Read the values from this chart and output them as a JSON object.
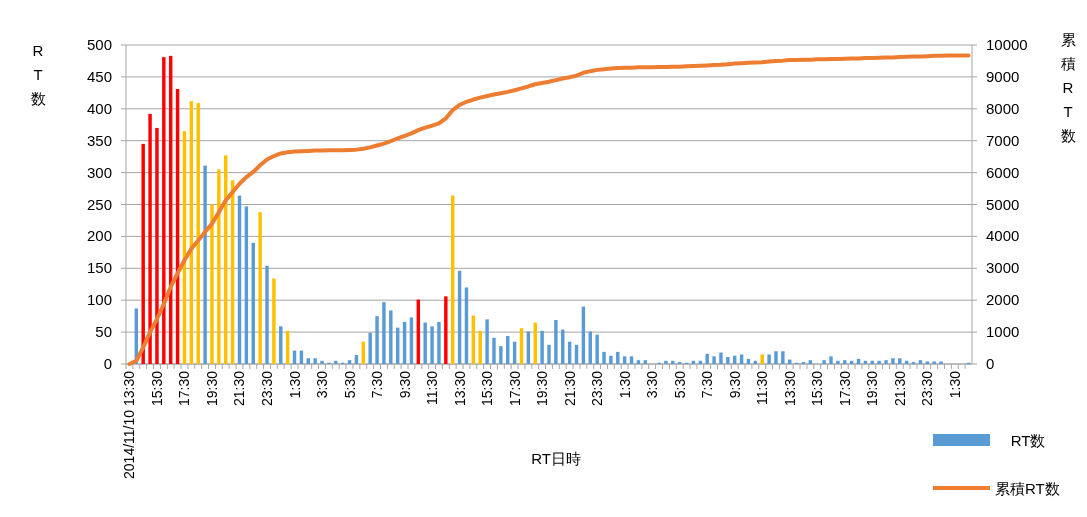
{
  "chart_data": {
    "type": "bar",
    "xlabel": "RT日時",
    "ylabel": "RT数",
    "y2label": "累積RT数",
    "categories": [
      "2014/11/10 13:30",
      null,
      null,
      null,
      "15:30",
      null,
      null,
      null,
      "17:30",
      null,
      null,
      null,
      "19:30",
      null,
      null,
      null,
      "21:30",
      null,
      null,
      null,
      "23:30",
      null,
      null,
      null,
      "1:30",
      null,
      null,
      null,
      "3:30",
      null,
      null,
      null,
      "5:30",
      null,
      null,
      null,
      "7:30",
      null,
      null,
      null,
      "9:30",
      null,
      null,
      null,
      "11:30",
      null,
      null,
      null,
      "13:30",
      null,
      null,
      null,
      "15:30",
      null,
      null,
      null,
      "17:30",
      null,
      null,
      null,
      "19:30",
      null,
      null,
      null,
      "21:30",
      null,
      null,
      null,
      "23:30",
      null,
      null,
      null,
      "1:30",
      null,
      null,
      null,
      "3:30",
      null,
      null,
      null,
      "5:30",
      null,
      null,
      null,
      "7:30",
      null,
      null,
      null,
      "9:30",
      null,
      null,
      null,
      "11:30",
      null,
      null,
      null,
      "13:30",
      null,
      null,
      null,
      "15:30",
      null,
      null,
      null,
      "17:30",
      null,
      null,
      null,
      "19:30",
      null,
      null,
      null,
      "21:30",
      null,
      null,
      null,
      "23:30",
      null,
      null,
      null,
      "1:30",
      null,
      null
    ],
    "series": [
      {
        "name": "RT数",
        "color": "#5b9bd5",
        "colors": [
          null,
          "#5b9bd5",
          "#ff0000",
          "#ff0000",
          "#ff0000",
          "#ff0000",
          "#ff0000",
          "#ff0000",
          "#ffc000",
          "#ffc000",
          "#ffc000",
          "#5b9bd5",
          "#ffc000",
          "#ffc000",
          "#ffc000",
          "#ffc000",
          "#5b9bd5",
          "#5b9bd5",
          "#5b9bd5",
          "#ffc000",
          "#5b9bd5",
          "#ffc000",
          "#5b9bd5",
          "#ffc000",
          "#5b9bd5",
          "#5b9bd5",
          "#5b9bd5",
          "#5b9bd5",
          "#5b9bd5",
          "#5b9bd5",
          "#5b9bd5",
          "#5b9bd5",
          "#5b9bd5",
          "#5b9bd5",
          "#ffc000",
          "#5b9bd5",
          "#5b9bd5",
          "#5b9bd5",
          "#5b9bd5",
          "#5b9bd5",
          "#5b9bd5",
          "#5b9bd5",
          "#ff0000",
          "#5b9bd5",
          "#5b9bd5",
          "#5b9bd5",
          "#ff0000",
          "#ffc000",
          "#5b9bd5",
          "#5b9bd5",
          "#ffc000",
          "#ffc000",
          "#5b9bd5",
          "#5b9bd5",
          "#5b9bd5",
          "#5b9bd5",
          "#5b9bd5",
          "#ffc000",
          "#5b9bd5",
          "#ffc000",
          "#5b9bd5",
          "#5b9bd5",
          "#5b9bd5",
          "#5b9bd5",
          "#5b9bd5",
          "#5b9bd5",
          "#5b9bd5",
          "#5b9bd5",
          "#5b9bd5",
          "#5b9bd5",
          "#5b9bd5",
          "#5b9bd5",
          "#5b9bd5",
          "#5b9bd5",
          "#5b9bd5",
          "#5b9bd5",
          "#5b9bd5",
          "#5b9bd5",
          "#5b9bd5",
          "#5b9bd5",
          "#5b9bd5",
          "#5b9bd5",
          "#5b9bd5",
          "#5b9bd5",
          "#5b9bd5",
          "#5b9bd5",
          "#5b9bd5",
          "#5b9bd5",
          "#5b9bd5",
          "#5b9bd5",
          "#5b9bd5",
          "#5b9bd5",
          "#ffc000",
          "#5b9bd5",
          "#5b9bd5",
          "#5b9bd5",
          "#5b9bd5",
          "#5b9bd5",
          "#5b9bd5",
          "#5b9bd5",
          "#5b9bd5",
          "#5b9bd5",
          "#5b9bd5",
          "#5b9bd5",
          "#5b9bd5",
          "#5b9bd5",
          "#5b9bd5",
          "#5b9bd5",
          "#5b9bd5",
          "#5b9bd5",
          "#5b9bd5",
          "#5b9bd5",
          "#5b9bd5",
          "#5b9bd5",
          "#5b9bd5",
          "#5b9bd5",
          "#5b9bd5",
          "#5b9bd5",
          "#5b9bd5",
          "#5b9bd5",
          "#5b9bd5",
          "#5b9bd5",
          "#5b9bd5"
        ],
        "values": [
          null,
          87,
          345,
          392,
          370,
          481,
          483,
          431,
          365,
          412,
          409,
          311,
          250,
          305,
          327,
          288,
          264,
          247,
          190,
          238,
          154,
          134,
          59,
          52,
          21,
          21,
          9,
          9,
          5,
          2,
          5,
          2,
          6,
          14,
          35,
          49,
          75,
          97,
          84,
          57,
          66,
          73,
          101,
          65,
          59,
          66,
          106,
          264,
          146,
          120,
          76,
          52,
          70,
          41,
          28,
          44,
          35,
          56,
          51,
          65,
          52,
          30,
          69,
          54,
          35,
          30,
          90,
          51,
          46,
          19,
          13,
          19,
          12,
          12,
          6,
          6,
          0,
          2,
          5,
          5,
          3,
          2,
          5,
          5,
          16,
          12,
          18,
          11,
          13,
          15,
          8,
          5,
          15,
          15,
          20,
          20,
          7,
          2,
          3,
          6,
          0,
          6,
          12,
          5,
          6,
          5,
          8,
          5,
          5,
          5,
          6,
          9,
          9,
          5,
          3,
          6,
          4,
          4,
          4,
          0,
          0,
          0,
          2
        ]
      },
      {
        "name": "累積RT数",
        "type": "line",
        "axis": "y2",
        "color": "#ed7d31",
        "values": [
          0,
          100,
          520,
          1000,
          1410,
          1880,
          2410,
          2850,
          3250,
          3610,
          3870,
          4140,
          4400,
          4760,
          5130,
          5390,
          5650,
          5860,
          6020,
          6230,
          6410,
          6520,
          6600,
          6640,
          6660,
          6670,
          6680,
          6690,
          6690,
          6700,
          6700,
          6700,
          6710,
          6720,
          6750,
          6790,
          6850,
          6910,
          6990,
          7070,
          7150,
          7230,
          7330,
          7410,
          7470,
          7540,
          7700,
          7960,
          8120,
          8220,
          8290,
          8350,
          8400,
          8450,
          8490,
          8530,
          8580,
          8640,
          8700,
          8770,
          8810,
          8850,
          8900,
          8950,
          8990,
          9040,
          9130,
          9180,
          9220,
          9240,
          9260,
          9280,
          9290,
          9290,
          9300,
          9300,
          9300,
          9310,
          9310,
          9320,
          9320,
          9330,
          9340,
          9350,
          9360,
          9370,
          9380,
          9400,
          9420,
          9430,
          9440,
          9450,
          9460,
          9480,
          9500,
          9510,
          9530,
          9530,
          9540,
          9540,
          9550,
          9550,
          9560,
          9560,
          9570,
          9580,
          9580,
          9590,
          9590,
          9600,
          9610,
          9610,
          9620,
          9630,
          9640,
          9640,
          9650,
          9660,
          9660,
          9670,
          9670,
          9670,
          9670
        ]
      }
    ],
    "ylim": [
      0,
      500
    ],
    "yticks": [
      0,
      50,
      100,
      150,
      200,
      250,
      300,
      350,
      400,
      450,
      500
    ],
    "y2lim": [
      0,
      10000
    ],
    "y2ticks": [
      0,
      1000,
      2000,
      3000,
      4000,
      5000,
      6000,
      7000,
      8000,
      9000,
      10000
    ],
    "grid": "y",
    "legend": "bottom right"
  }
}
